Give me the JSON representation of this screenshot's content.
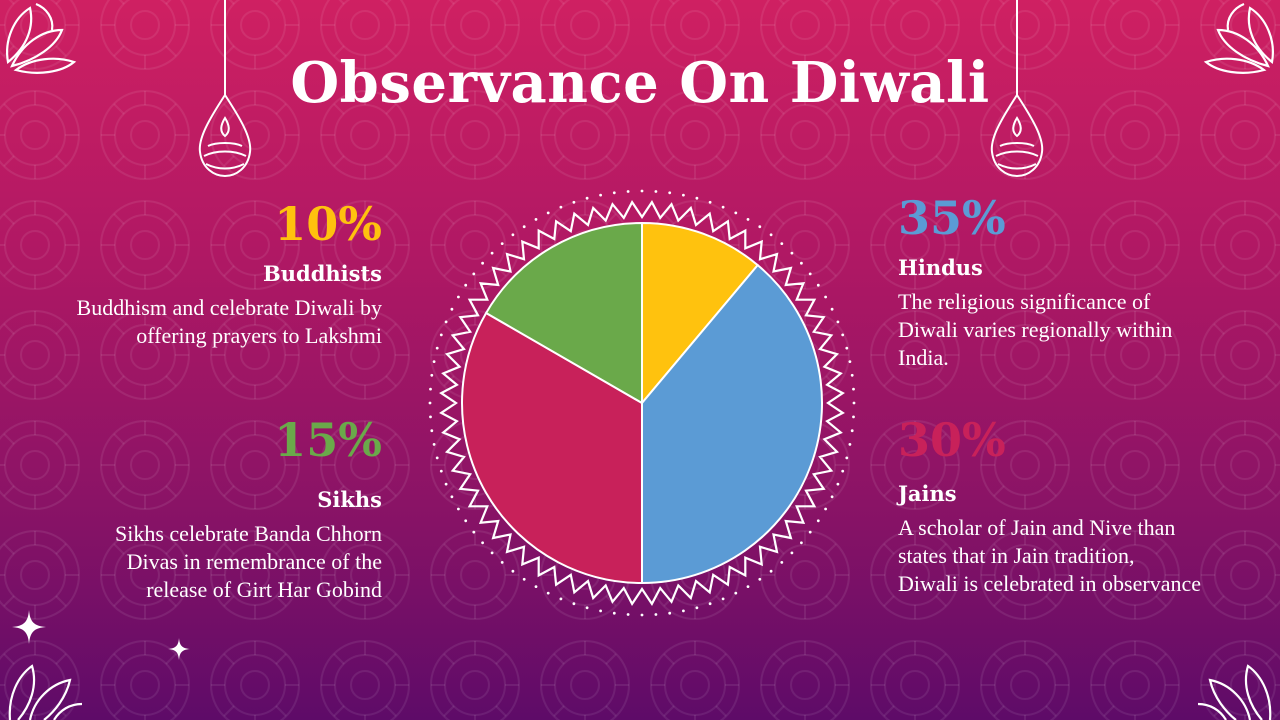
{
  "slide": {
    "title": "Observance On Diwali"
  },
  "blocks": {
    "buddhists": {
      "percent": "10%",
      "label": "Buddhists",
      "desc_lines": [
        "Buddhism and celebrate Diwali by",
        "offering prayers to Lakshmi"
      ],
      "color": "#ffc20e"
    },
    "sikhs": {
      "percent": "15%",
      "label": "Sikhs",
      "desc_lines": [
        "Sikhs celebrate Banda Chhorn",
        "Divas in remembrance of the",
        "release of Girt Har Gobind"
      ],
      "color": "#6aa94a"
    },
    "hindus": {
      "percent": "35%",
      "label": "Hindus",
      "desc_lines": [
        "The religious significance of",
        "Diwali varies regionally within",
        "India."
      ],
      "color": "#5b9bd5"
    },
    "jains": {
      "percent": "30%",
      "label": "Jains",
      "desc_lines": [
        "A scholar of Jain and Nive than",
        "states that in Jain tradition,",
        "Diwali is celebrated in observance"
      ],
      "color": "#c8215a"
    }
  },
  "chart_data": {
    "type": "pie",
    "categories": [
      "Buddhists",
      "Hindus",
      "Jains",
      "Sikhs"
    ],
    "values": [
      10,
      35,
      30,
      15
    ],
    "colors": [
      "#ffc20e",
      "#5b9bd5",
      "#c8215a",
      "#6aa94a"
    ],
    "title": "",
    "legend": "none",
    "start_angle_deg": 0,
    "direction": "clockwise"
  },
  "decorations": {
    "icons": [
      "diya-lantern-icon",
      "flower-corner-icon",
      "sparkle-icon",
      "mandala-pattern"
    ],
    "background_colors": [
      "#cf2062",
      "#5e0b68"
    ]
  }
}
